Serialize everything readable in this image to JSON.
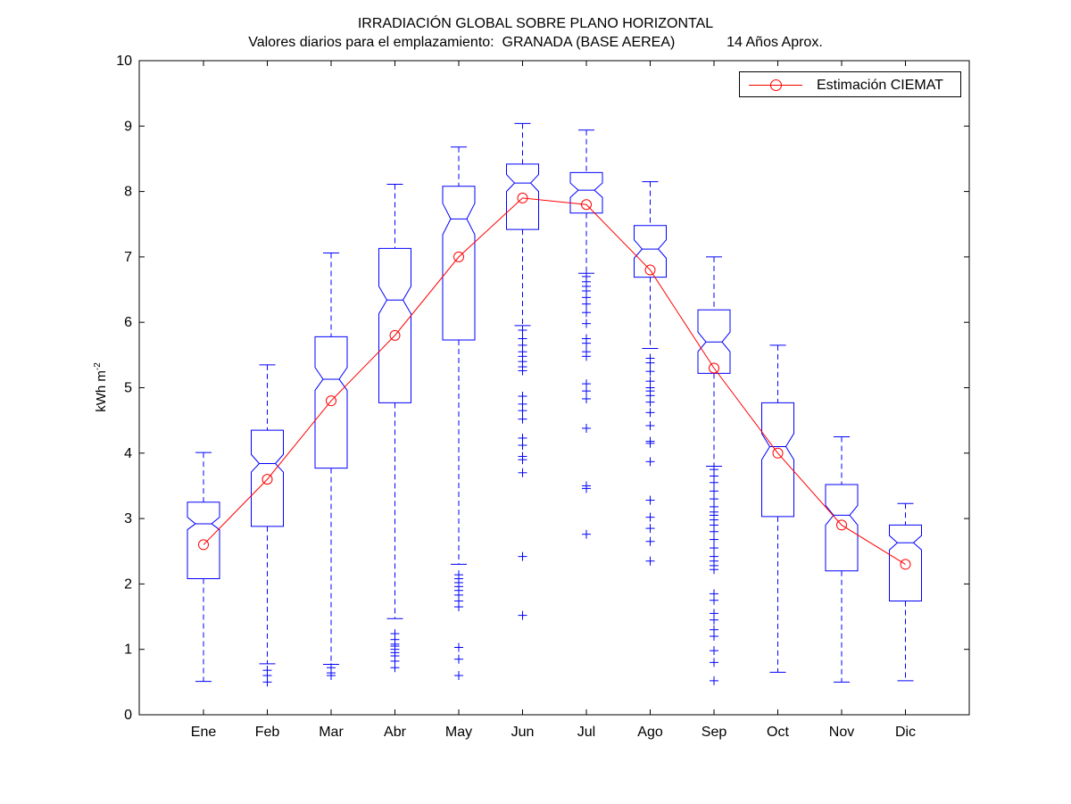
{
  "chart_data": {
    "type": "boxplot",
    "title": "IRRADIACIÓN GLOBAL SOBRE PLANO HORIZONTAL",
    "subtitle": "Valores diarios para el emplazamiento:  GRANADA (BASE AEREA)             14 Años Aprox.",
    "ylabel": {
      "base": "kWh m",
      "sup": "-2"
    },
    "xlabel": "",
    "ylim": [
      0,
      10
    ],
    "yticks": [
      "0",
      "1",
      "2",
      "3",
      "4",
      "5",
      "6",
      "7",
      "8",
      "9",
      "10"
    ],
    "categories": [
      "Ene",
      "Feb",
      "Mar",
      "Abr",
      "May",
      "Jun",
      "Jul",
      "Ago",
      "Sep",
      "Oct",
      "Nov",
      "Dic"
    ],
    "legend": {
      "label": "Estimación CIEMAT",
      "position": "top-right"
    },
    "colors": {
      "box": "#0000ff",
      "line": "#ff0000",
      "axis": "#000000"
    },
    "boxes": [
      {
        "q1": 2.08,
        "median": 2.92,
        "q3": 3.25,
        "whisker_low": 0.51,
        "whisker_high": 4.01,
        "notch_low": 2.83,
        "notch_high": 3.02,
        "outliers": []
      },
      {
        "q1": 2.88,
        "median": 3.84,
        "q3": 4.35,
        "whisker_low": 0.78,
        "whisker_high": 5.35,
        "notch_low": 3.71,
        "notch_high": 3.98,
        "outliers": [
          0.6,
          0.5,
          0.68
        ]
      },
      {
        "q1": 3.77,
        "median": 5.13,
        "q3": 5.78,
        "whisker_low": 0.77,
        "whisker_high": 7.06,
        "notch_low": 4.96,
        "notch_high": 5.31,
        "outliers": [
          0.72,
          0.64,
          0.6
        ]
      },
      {
        "q1": 4.77,
        "median": 6.34,
        "q3": 7.13,
        "whisker_low": 1.47,
        "whisker_high": 8.11,
        "notch_low": 6.13,
        "notch_high": 6.55,
        "outliers": [
          1.24,
          1.15,
          1.08,
          1.05,
          1.0,
          0.95,
          0.9,
          0.82,
          0.72
        ]
      },
      {
        "q1": 5.73,
        "median": 7.58,
        "q3": 8.08,
        "whisker_low": 2.3,
        "whisker_high": 8.68,
        "notch_low": 7.34,
        "notch_high": 7.82,
        "outliers": [
          2.14,
          2.08,
          2.02,
          1.96,
          1.9,
          1.83,
          1.74,
          1.65,
          1.03,
          0.85,
          0.6
        ]
      },
      {
        "q1": 7.42,
        "median": 8.13,
        "q3": 8.42,
        "whisker_low": 5.95,
        "whisker_high": 9.04,
        "notch_low": 8.0,
        "notch_high": 8.26,
        "outliers": [
          5.88,
          5.75,
          5.65,
          5.55,
          5.48,
          5.4,
          5.32,
          5.26,
          4.87,
          4.75,
          4.65,
          4.52,
          4.23,
          4.12,
          3.95,
          3.9,
          3.7,
          2.42,
          1.52
        ]
      },
      {
        "q1": 7.67,
        "median": 8.02,
        "q3": 8.29,
        "whisker_low": 6.75,
        "whisker_high": 8.94,
        "notch_low": 7.91,
        "notch_high": 8.13,
        "outliers": [
          6.7,
          6.62,
          6.55,
          6.48,
          6.38,
          6.28,
          6.15,
          5.98,
          5.75,
          5.68,
          5.55,
          5.48,
          5.06,
          4.95,
          4.83,
          4.38,
          3.5,
          3.46,
          2.76
        ]
      },
      {
        "q1": 6.69,
        "median": 7.12,
        "q3": 7.48,
        "whisker_low": 5.6,
        "whisker_high": 8.15,
        "notch_low": 6.98,
        "notch_high": 7.26,
        "outliers": [
          5.45,
          5.38,
          5.25,
          5.1,
          5.0,
          4.95,
          4.88,
          4.78,
          4.62,
          4.42,
          4.18,
          4.15,
          3.87,
          3.28,
          3.02,
          2.85,
          2.65,
          2.35
        ]
      },
      {
        "q1": 5.22,
        "median": 5.7,
        "q3": 6.19,
        "whisker_low": 3.8,
        "whisker_high": 7.0,
        "notch_low": 5.55,
        "notch_high": 5.85,
        "outliers": [
          3.75,
          3.65,
          3.55,
          3.42,
          3.3,
          3.18,
          3.1,
          3.05,
          2.98,
          2.9,
          2.8,
          2.68,
          2.55,
          2.42,
          2.35,
          2.28,
          2.22,
          1.85,
          1.75,
          1.55,
          1.45,
          1.3,
          1.2,
          0.98,
          0.8,
          0.52
        ]
      },
      {
        "q1": 3.03,
        "median": 4.1,
        "q3": 4.77,
        "whisker_low": 0.65,
        "whisker_high": 5.65,
        "notch_low": 3.9,
        "notch_high": 4.3,
        "outliers": []
      },
      {
        "q1": 2.2,
        "median": 3.05,
        "q3": 3.52,
        "whisker_low": 0.5,
        "whisker_high": 4.25,
        "notch_low": 2.9,
        "notch_high": 3.2,
        "outliers": []
      },
      {
        "q1": 1.74,
        "median": 2.63,
        "q3": 2.9,
        "whisker_low": 0.52,
        "whisker_high": 3.23,
        "notch_low": 2.52,
        "notch_high": 2.74,
        "outliers": []
      }
    ],
    "series": [
      {
        "name": "Estimación CIEMAT",
        "values": [
          2.6,
          3.6,
          4.8,
          5.8,
          7.0,
          7.9,
          7.8,
          6.8,
          5.3,
          4.0,
          2.9,
          2.3
        ]
      }
    ]
  }
}
